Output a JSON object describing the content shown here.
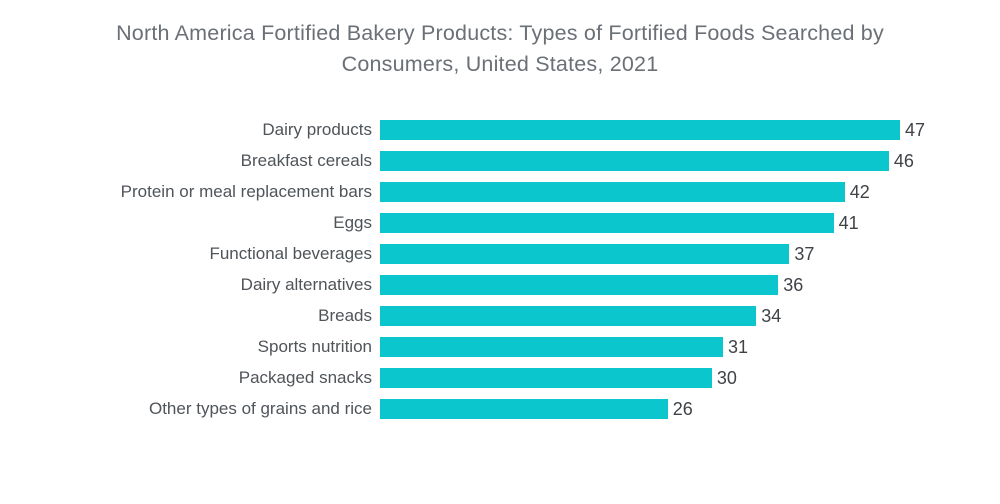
{
  "title": "North America Fortified Bakery Products: Types of Fortified Foods Searched by Consumers, United States, 2021",
  "chart_data": {
    "type": "bar",
    "orientation": "horizontal",
    "title": "North America Fortified Bakery Products: Types of Fortified Foods Searched by Consumers, United States, 2021",
    "categories": [
      "Dairy products",
      "Breakfast cereals",
      "Protein or meal replacement bars",
      "Eggs",
      "Functional beverages",
      "Dairy alternatives",
      "Breads",
      "Sports nutrition",
      "Packaged snacks",
      "Other types of grains and rice"
    ],
    "values": [
      47,
      46,
      42,
      41,
      37,
      36,
      34,
      31,
      30,
      26
    ],
    "xlabel": "",
    "ylabel": "",
    "xlim": [
      0,
      47
    ],
    "grid": false,
    "legend": "none",
    "value_labels_shown": true,
    "colors": {
      "bar": "#0cc6ce",
      "title_text": "#6b7076",
      "category_text": "#4f5459",
      "value_text": "#3f4347",
      "background": "#ffffff"
    }
  }
}
